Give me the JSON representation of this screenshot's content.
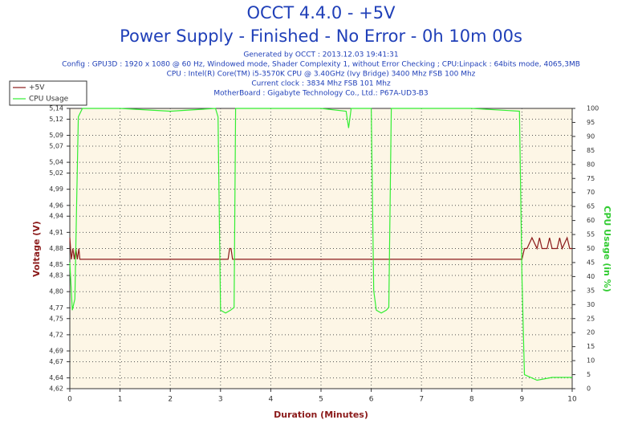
{
  "chart_data": {
    "type": "line",
    "title": "OCCT 4.4.0 - +5V",
    "subtitle": "Power Supply - Finished - No Error - 0h 10m 00s",
    "info": [
      "Generated by OCCT : 2013.12.03 19:41:31",
      "Config : GPU3D : 1920 x 1080 @ 60 Hz, Windowed mode, Shader Complexity 1, without Error Checking ; CPU:Linpack : 64bits mode, 4065,3MB",
      "CPU : Intel(R) Core(TM) i5-3570K CPU @ 3.40GHz (Ivy Bridge) 3400 Mhz FSB 100 Mhz",
      "Current clock : 3834 Mhz FSB 101 Mhz",
      "MotherBoard : Gigabyte Technology Co., Ltd.: P67A-UD3-B3"
    ],
    "x_label": "Duration (Minutes)",
    "y_label": "Voltage (V)",
    "y2_label": "CPU Usage (in %)",
    "xlim": [
      0,
      10
    ],
    "xticks": [
      0,
      1,
      2,
      3,
      4,
      5,
      6,
      7,
      8,
      9,
      10
    ],
    "ylim": [
      4.62,
      5.14
    ],
    "yticks": [
      {
        "value": 4.62,
        "label": "4,62"
      },
      {
        "value": 4.64,
        "label": "4,64"
      },
      {
        "value": 4.67,
        "label": "4,67"
      },
      {
        "value": 4.69,
        "label": "4,69"
      },
      {
        "value": 4.72,
        "label": "4,72"
      },
      {
        "value": 4.75,
        "label": "4,75"
      },
      {
        "value": 4.77,
        "label": "4,77"
      },
      {
        "value": 4.8,
        "label": "4,80"
      },
      {
        "value": 4.83,
        "label": "4,83"
      },
      {
        "value": 4.85,
        "label": "4,85"
      },
      {
        "value": 4.88,
        "label": "4,88"
      },
      {
        "value": 4.91,
        "label": "4,91"
      },
      {
        "value": 4.94,
        "label": "4,94"
      },
      {
        "value": 4.96,
        "label": "4,96"
      },
      {
        "value": 4.99,
        "label": "4,99"
      },
      {
        "value": 5.02,
        "label": "5,02"
      },
      {
        "value": 5.04,
        "label": "5,04"
      },
      {
        "value": 5.07,
        "label": "5,07"
      },
      {
        "value": 5.09,
        "label": "5,09"
      },
      {
        "value": 5.12,
        "label": "5,12"
      },
      {
        "value": 5.14,
        "label": "5,14"
      }
    ],
    "y2lim": [
      0,
      100
    ],
    "y2ticks": [
      0,
      5,
      10,
      15,
      20,
      25,
      30,
      35,
      40,
      45,
      50,
      55,
      60,
      65,
      70,
      75,
      80,
      85,
      90,
      95,
      100
    ],
    "grid": true,
    "legend": "top-left",
    "series": [
      {
        "name": "+5V",
        "color": "#8b1a1a",
        "x": [
          0,
          0.03,
          0.06,
          0.09,
          0.12,
          0.15,
          0.18,
          0.2,
          3.15,
          3.18,
          3.21,
          3.24,
          9.0,
          9.05,
          9.1,
          9.2,
          9.3,
          9.35,
          9.4,
          9.5,
          9.55,
          9.6,
          9.7,
          9.75,
          9.8,
          9.9,
          9.95,
          10
        ],
        "values": [
          4.9,
          4.86,
          4.88,
          4.86,
          4.88,
          4.86,
          4.88,
          4.86,
          4.86,
          4.88,
          4.88,
          4.86,
          4.86,
          4.88,
          4.88,
          4.9,
          4.88,
          4.9,
          4.88,
          4.88,
          4.9,
          4.88,
          4.88,
          4.9,
          4.88,
          4.9,
          4.88,
          4.88
        ]
      },
      {
        "name": "CPU Usage",
        "color": "#33ee33",
        "axis": "y2",
        "x": [
          0,
          0.05,
          0.1,
          0.13,
          0.17,
          0.25,
          1,
          2,
          2.9,
          2.95,
          3.0,
          3.1,
          3.2,
          3.27,
          3.3,
          4,
          5,
          5.5,
          5.55,
          5.6,
          6.0,
          6.05,
          6.1,
          6.2,
          6.3,
          6.35,
          6.4,
          7,
          8,
          8.95,
          9.0,
          9.05,
          9.3,
          9.6,
          10
        ],
        "values": [
          45,
          28,
          32,
          60,
          97,
          100,
          100,
          99,
          100,
          97,
          28,
          27,
          28,
          29,
          100,
          100,
          100,
          99,
          93,
          100,
          100,
          35,
          28,
          27,
          28,
          29,
          100,
          100,
          100,
          99,
          40,
          5,
          3,
          4,
          4
        ]
      }
    ]
  }
}
